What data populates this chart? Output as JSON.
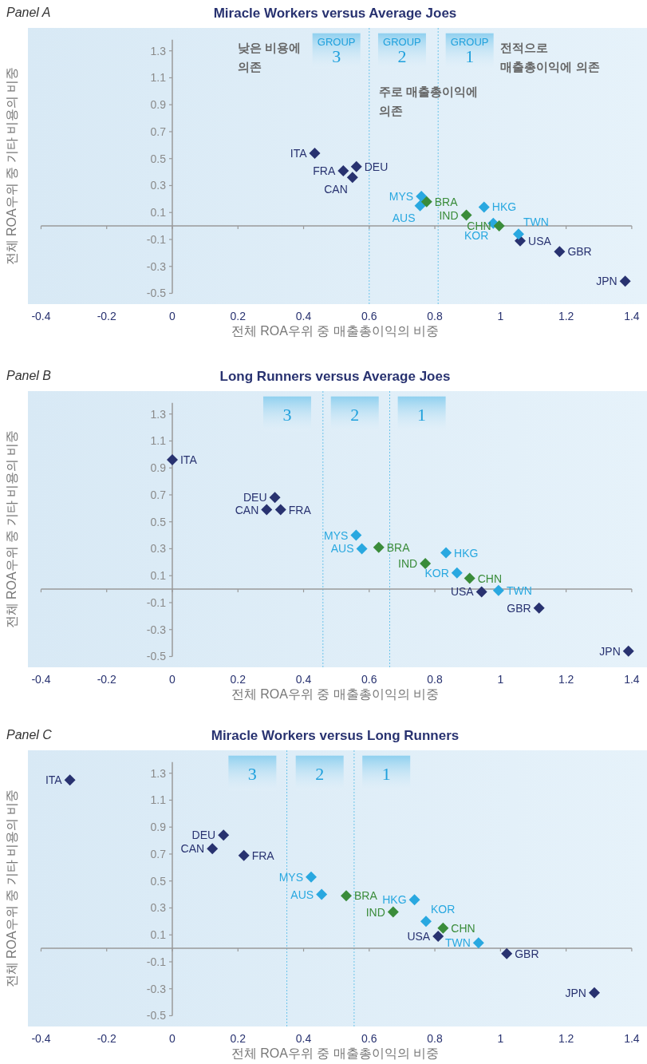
{
  "chart_data": [
    {
      "type": "scatter",
      "title": "Miracle Workers versus Average Joes",
      "subtitle": "Panel A",
      "xlabel": "전체 ROA우위 중 매출총이익의 비중",
      "ylabel": "전체 ROA우위 중 기타 비용의 비중",
      "marker": "diamond",
      "xlim": [
        -0.44,
        1.41
      ],
      "ylim": [
        -0.58,
        1.47
      ],
      "xticks": [
        -0.4,
        -0.2,
        0,
        0.2,
        0.4,
        0.6,
        0.8,
        1,
        1.2,
        1.4
      ],
      "yticks": [
        -0.5,
        -0.3,
        -0.1,
        0.1,
        0.3,
        0.5,
        0.7,
        0.9,
        1.1,
        1.3
      ],
      "series": [
        {
          "color": "#283270",
          "x": [
            0.434,
            0.561,
            0.521,
            0.549,
            1.06,
            1.18,
            1.38
          ],
          "values": [
            0.54,
            0.44,
            0.41,
            0.36,
            -0.11,
            -0.19,
            -0.41
          ],
          "value_labels": [
            "ITA",
            "DEU",
            "FRA",
            "CAN",
            "USA",
            "GBR",
            "JPN"
          ]
        },
        {
          "color": "#29a8e0",
          "x": [
            0.759,
            0.755,
            0.95,
            0.978,
            1.055
          ],
          "values": [
            0.22,
            0.15,
            0.14,
            0.02,
            -0.06
          ],
          "value_labels": [
            "MYS",
            "AUS",
            "HKG",
            "KOR",
            "TWN"
          ]
        },
        {
          "color": "#3a8c3a",
          "x": [
            0.775,
            0.896,
            0.996
          ],
          "values": [
            0.18,
            0.08,
            0.0
          ],
          "value_labels": [
            "BRA",
            "IND",
            "CHN"
          ]
        }
      ],
      "ref_lines": [
        {
          "axis": "x",
          "value": 0.6,
          "label": null,
          "line_style": "dotted",
          "color": "#6cc4ea"
        },
        {
          "axis": "x",
          "value": 0.81,
          "label": null,
          "line_style": "dotted",
          "color": "#6cc4ea"
        }
      ],
      "annotations": [
        "GROUP 3",
        "GROUP 2",
        "GROUP 1",
        "낮은 비용에\n의존",
        "전적으로\n매출총이익에 의존",
        "주로 매출총이익에\n의존"
      ]
    },
    {
      "type": "scatter",
      "title": "Long Runners versus Average Joes",
      "subtitle": "Panel B",
      "xlabel": "전체 ROA우위 중 매출총이익의 비중",
      "ylabel": "전체 ROA우위 중 기타 비용의 비중",
      "marker": "diamond",
      "xlim": [
        -0.44,
        1.41
      ],
      "ylim": [
        -0.58,
        1.47
      ],
      "xticks": [
        -0.4,
        -0.2,
        0,
        0.2,
        0.4,
        0.6,
        0.8,
        1,
        1.2,
        1.4
      ],
      "yticks": [
        -0.5,
        -0.3,
        -0.1,
        0.1,
        0.3,
        0.5,
        0.7,
        0.9,
        1.1,
        1.3
      ],
      "series": [
        {
          "color": "#283270",
          "x": [
            0.0,
            0.3125,
            0.2875,
            0.33,
            0.9425,
            1.1175,
            1.39
          ],
          "values": [
            0.96,
            0.68,
            0.59,
            0.59,
            -0.02,
            -0.14,
            -0.46
          ],
          "value_labels": [
            "ITA",
            "DEU",
            "CAN",
            "FRA",
            "USA",
            "GBR",
            "JPN"
          ]
        },
        {
          "color": "#29a8e0",
          "x": [
            0.56,
            0.5775,
            0.834,
            0.8675,
            0.994
          ],
          "values": [
            0.4,
            0.3,
            0.27,
            0.12,
            -0.01
          ],
          "value_labels": [
            "MYS",
            "AUS",
            "HKG",
            "KOR",
            "TWN"
          ]
        },
        {
          "color": "#3a8c3a",
          "x": [
            0.629,
            0.771,
            0.906
          ],
          "values": [
            0.31,
            0.19,
            0.08
          ],
          "value_labels": [
            "BRA",
            "IND",
            "CHN"
          ]
        }
      ],
      "ref_lines": [
        {
          "axis": "x",
          "value": 0.459,
          "label": null,
          "line_style": "dotted",
          "color": "#6cc4ea"
        },
        {
          "axis": "x",
          "value": 0.6625,
          "label": null,
          "line_style": "dotted",
          "color": "#6cc4ea"
        }
      ],
      "annotations": [
        "3",
        "2",
        "1"
      ]
    },
    {
      "type": "scatter",
      "title": "Miracle Workers versus Long Runners",
      "subtitle": "Panel C",
      "xlabel": "전체 ROA우위 중 매출총이익의 비중",
      "ylabel": "전체 ROA우위 중 기타 비용의 비중",
      "marker": "diamond",
      "xlim": [
        -0.44,
        1.41
      ],
      "ylim": [
        -0.58,
        1.47
      ],
      "xticks": [
        -0.4,
        -0.2,
        0,
        0.2,
        0.4,
        0.6,
        0.8,
        1,
        1.2,
        1.4
      ],
      "yticks": [
        -0.5,
        -0.3,
        -0.1,
        0.1,
        0.3,
        0.5,
        0.7,
        0.9,
        1.1,
        1.3
      ],
      "series": [
        {
          "color": "#283270",
          "x": [
            -0.312,
            0.156,
            0.122,
            0.218,
            0.81,
            1.019,
            1.286
          ],
          "values": [
            1.25,
            0.84,
            0.74,
            0.69,
            0.09,
            -0.04,
            -0.33
          ],
          "value_labels": [
            "ITA",
            "DEU",
            "CAN",
            "FRA",
            "USA",
            "GBR",
            "JPN"
          ]
        },
        {
          "color": "#29a8e0",
          "x": [
            0.423,
            0.455,
            0.738,
            0.773,
            0.933
          ],
          "values": [
            0.53,
            0.4,
            0.36,
            0.2,
            0.04
          ],
          "value_labels": [
            "MYS",
            "AUS",
            "HKG",
            "KOR",
            "TWN"
          ]
        },
        {
          "color": "#3a8c3a",
          "x": [
            0.53,
            0.673,
            0.825
          ],
          "values": [
            0.39,
            0.27,
            0.15
          ],
          "value_labels": [
            "BRA",
            "IND",
            "CHN"
          ]
        }
      ],
      "ref_lines": [
        {
          "axis": "x",
          "value": 0.349,
          "label": null,
          "line_style": "dotted",
          "color": "#6cc4ea"
        },
        {
          "axis": "x",
          "value": 0.554,
          "label": null,
          "line_style": "dotted",
          "color": "#6cc4ea"
        }
      ],
      "annotations": [
        "3",
        "2",
        "1"
      ]
    }
  ]
}
